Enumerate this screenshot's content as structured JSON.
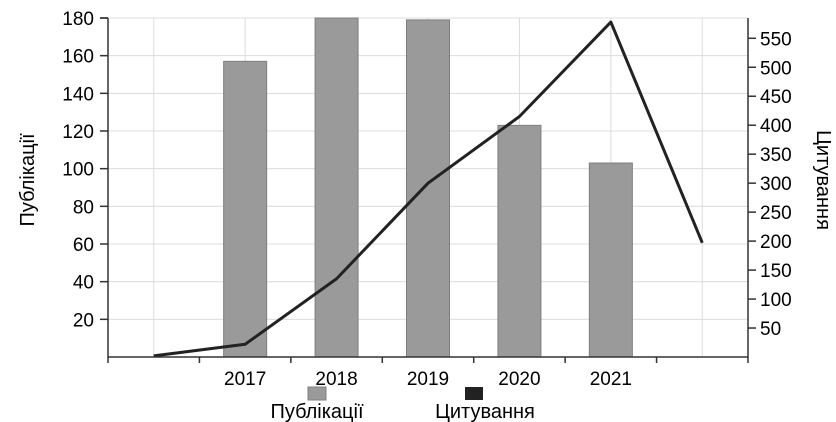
{
  "chart_data": {
    "type": "bar",
    "categories": [
      "",
      "2017",
      "2018",
      "2019",
      "2020",
      "2021",
      ""
    ],
    "series": [
      {
        "name": "Публікації",
        "type": "bar",
        "axis": "left",
        "color": "#9a9a9a",
        "values": [
          null,
          157,
          181,
          179,
          123,
          103,
          null
        ]
      },
      {
        "name": "Цитування",
        "type": "line",
        "axis": "right",
        "color": "#222222",
        "values": [
          2,
          22,
          135,
          300,
          415,
          578,
          197
        ]
      }
    ],
    "ylabel": "Публікації",
    "ylabel_right": "Цитування",
    "ylim": [
      0,
      180
    ],
    "ylim_right": [
      0,
      585
    ],
    "yticks": [
      20,
      40,
      60,
      80,
      100,
      120,
      140,
      160,
      180
    ],
    "yticks_right": [
      50,
      100,
      150,
      200,
      250,
      300,
      350,
      400,
      450,
      500,
      550
    ],
    "grid": true,
    "legend": "bottom"
  }
}
